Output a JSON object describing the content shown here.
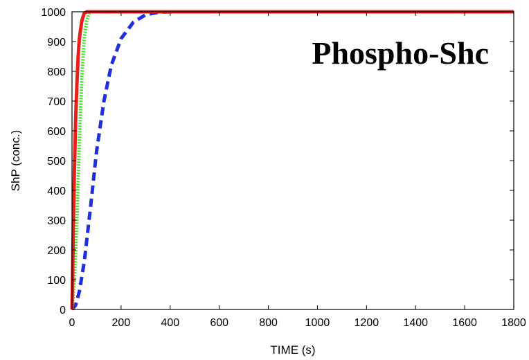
{
  "chart_data": {
    "type": "line",
    "title": "Phospho-Shc",
    "xlabel": "TIME (s)",
    "ylabel": "ShP (conc.)",
    "xlim": [
      0,
      1800
    ],
    "ylim": [
      0,
      1000
    ],
    "x_ticks": [
      "0",
      "200",
      "400",
      "600",
      "800",
      "1000",
      "1200",
      "1400",
      "1600",
      "1800"
    ],
    "y_ticks": [
      "0",
      "100",
      "200",
      "300",
      "400",
      "500",
      "600",
      "700",
      "800",
      "900",
      "1000"
    ],
    "grid": false,
    "legend": "none",
    "series": [
      {
        "color": "#e8201a",
        "style": "solid",
        "x": [
          0,
          3,
          6,
          10,
          15,
          20,
          25,
          30,
          40,
          50,
          60,
          1800
        ],
        "y": [
          0,
          150,
          310,
          470,
          640,
          760,
          850,
          910,
          970,
          995,
          1000,
          1000
        ]
      },
      {
        "color": "#44dd2a",
        "style": "dotted",
        "x": [
          0,
          10,
          20,
          30,
          40,
          50,
          60,
          70,
          80,
          1800
        ],
        "y": [
          0,
          100,
          300,
          560,
          780,
          910,
          970,
          995,
          1000,
          1000
        ]
      },
      {
        "color": "#1f2fe0",
        "style": "dashed",
        "x": [
          0,
          15,
          30,
          50,
          75,
          100,
          130,
          160,
          200,
          250,
          300,
          350,
          400,
          1800
        ],
        "y": [
          0,
          15,
          60,
          160,
          340,
          530,
          700,
          820,
          910,
          965,
          990,
          998,
          1000,
          1000
        ]
      }
    ]
  }
}
